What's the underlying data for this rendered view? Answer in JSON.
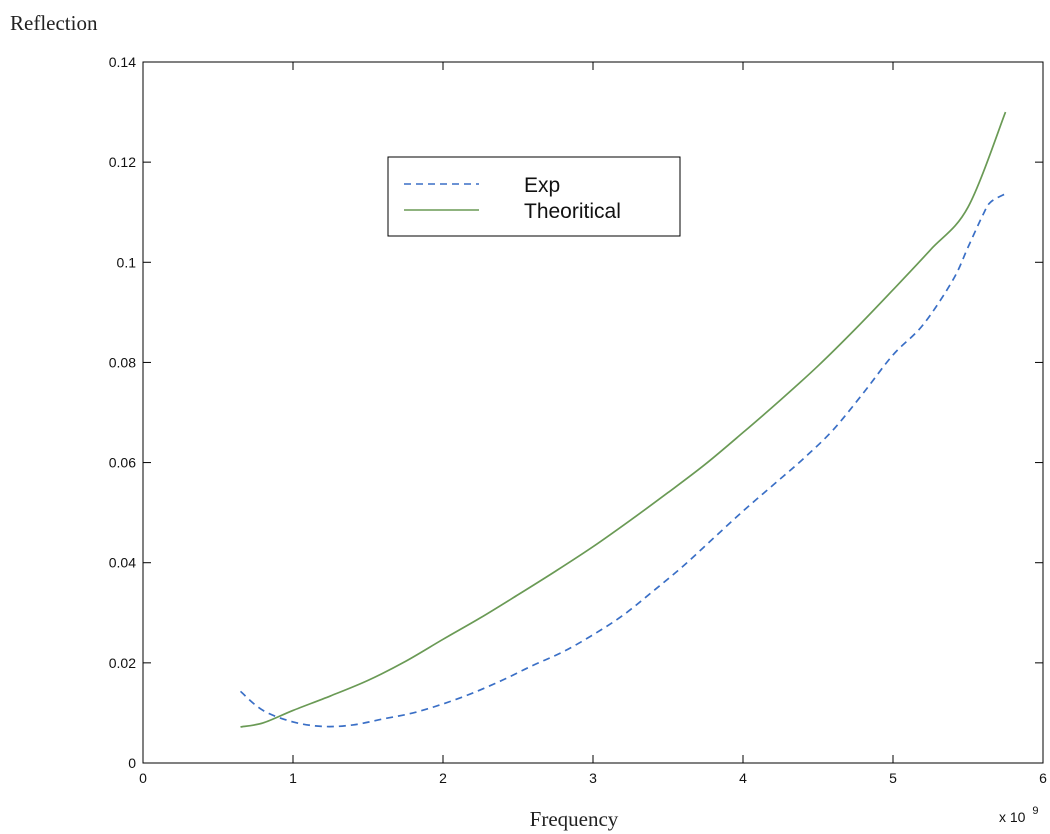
{
  "chart_data": {
    "type": "line",
    "title": "",
    "xlabel": "Frequency",
    "ylabel": "Reflection",
    "x_multiplier_label": "x 10",
    "x_multiplier_exponent": "9",
    "xlim": [
      0,
      6
    ],
    "ylim": [
      0,
      0.14
    ],
    "x_ticks": [
      0,
      1,
      2,
      3,
      4,
      5,
      6
    ],
    "x_tick_labels": [
      "0",
      "1",
      "2",
      "3",
      "4",
      "5",
      "6"
    ],
    "y_ticks": [
      0,
      0.02,
      0.04,
      0.06,
      0.08,
      0.1,
      0.12,
      0.14
    ],
    "y_tick_labels": [
      "0",
      "0.02",
      "0.04",
      "0.06",
      "0.08",
      "0.1",
      "0.12",
      "0.14"
    ],
    "grid": false,
    "legend_position": "top-center",
    "series": [
      {
        "name": "Exp",
        "style": "dashed",
        "color": "#3a6fc6",
        "x": [
          0.65,
          0.8,
          1.0,
          1.2,
          1.4,
          1.6,
          1.8,
          2.0,
          2.2,
          2.4,
          2.6,
          2.8,
          3.0,
          3.2,
          3.4,
          3.6,
          3.8,
          4.0,
          4.2,
          4.4,
          4.6,
          4.8,
          5.0,
          5.2,
          5.4,
          5.5,
          5.6,
          5.65,
          5.75
        ],
        "y": [
          0.0143,
          0.0105,
          0.0082,
          0.0073,
          0.0076,
          0.0088,
          0.01,
          0.0118,
          0.014,
          0.0166,
          0.0195,
          0.0222,
          0.0256,
          0.0295,
          0.0343,
          0.0393,
          0.0448,
          0.0503,
          0.0555,
          0.0607,
          0.0665,
          0.0738,
          0.0815,
          0.0875,
          0.0965,
          0.103,
          0.1095,
          0.112,
          0.1137
        ]
      },
      {
        "name": "Theoritical",
        "style": "solid",
        "color": "#6a9a55",
        "x": [
          0.65,
          0.8,
          1.0,
          1.25,
          1.5,
          1.75,
          2.0,
          2.25,
          2.5,
          2.75,
          3.0,
          3.25,
          3.5,
          3.75,
          4.0,
          4.25,
          4.5,
          4.75,
          5.0,
          5.25,
          5.5,
          5.75
        ],
        "y": [
          0.0072,
          0.008,
          0.0105,
          0.0134,
          0.0165,
          0.0203,
          0.0247,
          0.029,
          0.0336,
          0.0383,
          0.0432,
          0.0485,
          0.054,
          0.0597,
          0.066,
          0.0725,
          0.0793,
          0.0867,
          0.0945,
          0.1025,
          0.111,
          0.13
        ]
      }
    ]
  },
  "legend": {
    "items": [
      {
        "label": "Exp"
      },
      {
        "label": "Theoritical"
      }
    ]
  },
  "colors": {
    "axis": "#000000",
    "exp_line": "#3a6fc6",
    "theory_line": "#6a9a55"
  }
}
